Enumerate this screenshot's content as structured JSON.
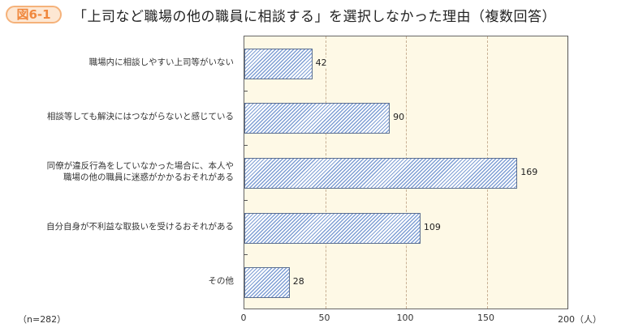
{
  "header": {
    "badge": "図6-1",
    "title": "「上司など職場の他の職員に相談する」を選択しなかった理由（複数回答）"
  },
  "footer": {
    "sample_size": "（n=282）"
  },
  "colors": {
    "badge_border": "#f5b27a",
    "badge_text": "#f0883e",
    "plot_background": "#fef9e6",
    "bar_hatch": "#7f9fd4",
    "bar_border": "#5b6e8f",
    "gridline": "#c8b094"
  },
  "chart_data": {
    "type": "bar",
    "orientation": "horizontal",
    "title": "「上司など職場の他の職員に相談する」を選択しなかった理由（複数回答）",
    "categories": [
      "職場内に相談しやすい上司等がいない",
      "相談等しても解決にはつながらないと感じている",
      "同僚が違反行為をしていなかった場合に、本人や職場の他の職員に迷惑がかかるおそれがある",
      "自分自身が不利益な取扱いを受けるおそれがある",
      "その他"
    ],
    "category_lines": [
      [
        "職場内に相談しやすい上司等がいない"
      ],
      [
        "相談等しても解決にはつながらないと感じている"
      ],
      [
        "同僚が違反行為をしていなかった場合に、本人や",
        "職場の他の職員に迷惑がかかるおそれがある"
      ],
      [
        "自分自身が不利益な取扱いを受けるおそれがある"
      ],
      [
        "その他"
      ]
    ],
    "values": [
      42,
      90,
      169,
      109,
      28
    ],
    "value_labels": [
      "42",
      "90",
      "169",
      "109",
      "28"
    ],
    "xlabel": "（人）",
    "ylabel": "",
    "xlim": [
      0,
      200
    ],
    "xticks": [
      0,
      50,
      100,
      150,
      200
    ],
    "xtick_labels": [
      "0",
      "50",
      "100",
      "150",
      "200（人）"
    ],
    "grid": "vertical dashed",
    "legend": null,
    "annotation": "（n=282）"
  }
}
